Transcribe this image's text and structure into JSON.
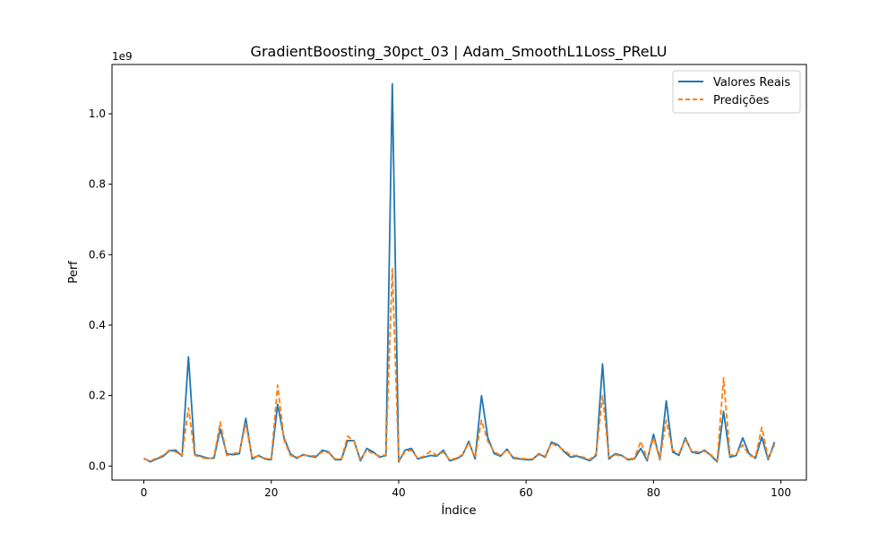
{
  "chart_data": {
    "type": "line",
    "title": "GradientBoosting_30pct_03 | Adam_SmoothL1Loss_PReLU",
    "xlabel": "Índice",
    "ylabel": "Perf",
    "y_offset_label": "1e9",
    "y_scale_multiplier": 1000000000,
    "xlim": [
      -5,
      104
    ],
    "ylim": [
      -0.04,
      1.14
    ],
    "xticks": [
      0,
      20,
      40,
      60,
      80,
      100
    ],
    "xtick_labels": [
      "0",
      "20",
      "40",
      "60",
      "80",
      "100"
    ],
    "yticks": [
      0.0,
      0.2,
      0.4,
      0.6,
      0.8,
      1.0
    ],
    "ytick_labels": [
      "0.0",
      "0.2",
      "0.4",
      "0.6",
      "0.8",
      "1.0"
    ],
    "grid": false,
    "legend_position": "top-right",
    "x": [
      0,
      1,
      2,
      3,
      4,
      5,
      6,
      7,
      8,
      9,
      10,
      11,
      12,
      13,
      14,
      15,
      16,
      17,
      18,
      19,
      20,
      21,
      22,
      23,
      24,
      25,
      26,
      27,
      28,
      29,
      30,
      31,
      32,
      33,
      34,
      35,
      36,
      37,
      38,
      39,
      40,
      41,
      42,
      43,
      44,
      45,
      46,
      47,
      48,
      49,
      50,
      51,
      52,
      53,
      54,
      55,
      56,
      57,
      58,
      59,
      60,
      61,
      62,
      63,
      64,
      65,
      66,
      67,
      68,
      69,
      70,
      71,
      72,
      73,
      74,
      75,
      76,
      77,
      78,
      79,
      80,
      81,
      82,
      83,
      84,
      85,
      86,
      87,
      88,
      89,
      90,
      91,
      92,
      93,
      94,
      95,
      96,
      97,
      98,
      99
    ],
    "series": [
      {
        "name": "Valores Reais",
        "color": "#1f77b4",
        "dash": "solid",
        "values": [
          0.022,
          0.012,
          0.02,
          0.027,
          0.043,
          0.045,
          0.028,
          0.31,
          0.032,
          0.028,
          0.022,
          0.022,
          0.105,
          0.035,
          0.032,
          0.035,
          0.135,
          0.02,
          0.03,
          0.02,
          0.018,
          0.175,
          0.08,
          0.035,
          0.022,
          0.032,
          0.028,
          0.025,
          0.045,
          0.04,
          0.018,
          0.018,
          0.072,
          0.072,
          0.015,
          0.05,
          0.04,
          0.025,
          0.03,
          1.085,
          0.012,
          0.045,
          0.05,
          0.02,
          0.025,
          0.03,
          0.028,
          0.045,
          0.015,
          0.02,
          0.03,
          0.07,
          0.02,
          0.2,
          0.08,
          0.035,
          0.028,
          0.048,
          0.022,
          0.02,
          0.018,
          0.018,
          0.035,
          0.025,
          0.068,
          0.06,
          0.04,
          0.025,
          0.028,
          0.022,
          0.015,
          0.03,
          0.29,
          0.02,
          0.035,
          0.03,
          0.018,
          0.02,
          0.05,
          0.015,
          0.09,
          0.018,
          0.185,
          0.04,
          0.03,
          0.08,
          0.04,
          0.035,
          0.045,
          0.03,
          0.012,
          0.155,
          0.025,
          0.03,
          0.08,
          0.035,
          0.022,
          0.082,
          0.018,
          0.068
        ]
      },
      {
        "name": "Predições",
        "color": "#ff7f0e",
        "dash": "dashed",
        "values": [
          0.02,
          0.015,
          0.022,
          0.03,
          0.045,
          0.04,
          0.03,
          0.165,
          0.03,
          0.025,
          0.02,
          0.025,
          0.125,
          0.03,
          0.035,
          0.04,
          0.12,
          0.025,
          0.028,
          0.022,
          0.02,
          0.23,
          0.075,
          0.03,
          0.025,
          0.03,
          0.03,
          0.028,
          0.04,
          0.038,
          0.02,
          0.02,
          0.085,
          0.07,
          0.02,
          0.045,
          0.035,
          0.028,
          0.032,
          0.56,
          0.015,
          0.04,
          0.045,
          0.022,
          0.028,
          0.042,
          0.03,
          0.04,
          0.018,
          0.022,
          0.032,
          0.065,
          0.025,
          0.13,
          0.07,
          0.04,
          0.03,
          0.045,
          0.025,
          0.022,
          0.02,
          0.02,
          0.032,
          0.028,
          0.065,
          0.055,
          0.045,
          0.03,
          0.03,
          0.025,
          0.018,
          0.035,
          0.2,
          0.025,
          0.032,
          0.028,
          0.02,
          0.022,
          0.07,
          0.02,
          0.08,
          0.02,
          0.13,
          0.045,
          0.035,
          0.075,
          0.042,
          0.04,
          0.042,
          0.032,
          0.015,
          0.25,
          0.03,
          0.035,
          0.06,
          0.03,
          0.025,
          0.11,
          0.022,
          0.06
        ]
      }
    ]
  }
}
